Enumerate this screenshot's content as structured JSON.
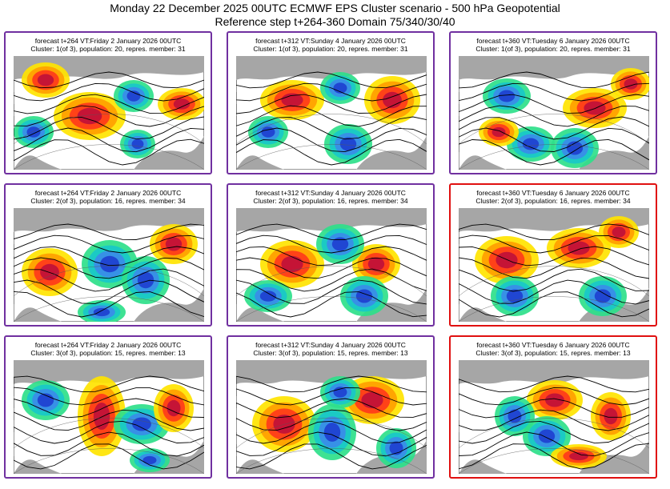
{
  "header": {
    "title": "Monday 22 December 2025 00UTC ECMWF EPS Cluster scenario - 500 hPa Geopotential",
    "subtitle": "Reference step t+264-360 Domain 75/340/30/40"
  },
  "colors": {
    "frame_default": "#7030a0",
    "frame_highlight": "#e01010",
    "land": "#a6a6a6",
    "positive_anomaly": "#c0103a",
    "negative_anomaly": "#1e40d0"
  },
  "panels": [
    {
      "line1": "forecast t+264 VT:Friday 2 January 2026 00UTC",
      "line2": "Cluster: 1(of 3), population: 20, repres. member: 31",
      "highlight": false
    },
    {
      "line1": "forecast t+312 VT:Sunday 4 January 2026 00UTC",
      "line2": "Cluster: 1(of 3), population: 20, repres. member: 31",
      "highlight": false
    },
    {
      "line1": "forecast t+360 VT:Tuesday 6 January 2026 00UTC",
      "line2": "Cluster: 1(of 3), population: 20, repres. member: 31",
      "highlight": false
    },
    {
      "line1": "forecast t+264 VT:Friday 2 January 2026 00UTC",
      "line2": "Cluster: 2(of 3), population: 16, repres. member: 34",
      "highlight": false
    },
    {
      "line1": "forecast t+312 VT:Sunday 4 January 2026 00UTC",
      "line2": "Cluster: 2(of 3), population: 16, repres. member: 34",
      "highlight": false
    },
    {
      "line1": "forecast t+360 VT:Tuesday 6 January 2026 00UTC",
      "line2": "Cluster: 2(of 3), population: 16, repres. member: 34",
      "highlight": true
    },
    {
      "line1": "forecast t+264 VT:Friday 2 January 2026 00UTC",
      "line2": "Cluster: 3(of 3), population: 15, repres. member: 13",
      "highlight": false
    },
    {
      "line1": "forecast t+312 VT:Sunday 4 January 2026 00UTC",
      "line2": "Cluster: 3(of 3), population: 15, repres. member: 13",
      "highlight": false
    },
    {
      "line1": "forecast t+360 VT:Tuesday 6 January 2026 00UTC",
      "line2": "Cluster: 3(of 3), population: 15, repres. member: 13",
      "highlight": true
    }
  ]
}
